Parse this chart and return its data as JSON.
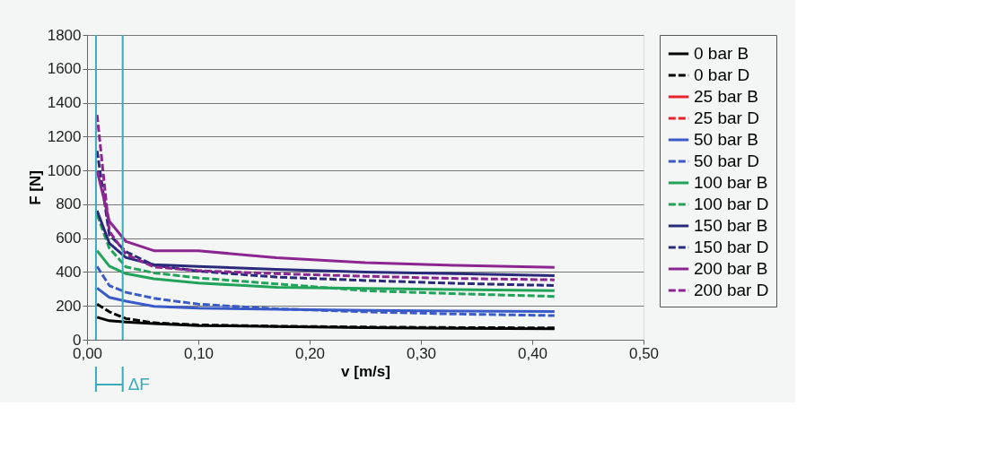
{
  "chart_data": {
    "type": "line",
    "xlabel": "v [m/s]",
    "ylabel": "F [N]",
    "x": [
      0.009,
      0.02,
      0.035,
      0.06,
      0.1,
      0.17,
      0.25,
      0.33,
      0.42
    ],
    "xlim": [
      0,
      0.5
    ],
    "xticks": [
      {
        "value": 0,
        "label": "0,00"
      },
      {
        "value": 0.1,
        "label": "0,10"
      },
      {
        "value": 0.2,
        "label": "0,20"
      },
      {
        "value": 0.3,
        "label": "0,30"
      },
      {
        "value": 0.4,
        "label": "0,40"
      },
      {
        "value": 0.5,
        "label": "0,50"
      }
    ],
    "ylim": [
      0,
      1800
    ],
    "yticks": [
      0,
      200,
      400,
      600,
      800,
      1000,
      1200,
      1400,
      1600,
      1800
    ],
    "grid": "y",
    "legend": "right",
    "marker": "none",
    "series": [
      {
        "name": "0 bar B",
        "color": "#000000",
        "line_style": "solid",
        "values": [
          133,
          112,
          105,
          95,
          84,
          78,
          72,
          68,
          65
        ]
      },
      {
        "name": "0 bar D",
        "color": "#000000",
        "line_style": "dashed",
        "values": [
          211,
          165,
          125,
          100,
          88,
          80,
          75,
          72,
          70
        ]
      },
      {
        "name": "25 bar B",
        "color": "#e8232a",
        "line_style": "solid",
        "values": [
          null,
          null,
          null,
          null,
          null,
          null,
          null,
          null,
          null
        ]
      },
      {
        "name": "25 bar D",
        "color": "#e8232a",
        "line_style": "dashed",
        "values": [
          null,
          null,
          null,
          null,
          null,
          null,
          null,
          null,
          null
        ]
      },
      {
        "name": "50 bar B",
        "color": "#3a5bc7",
        "line_style": "solid",
        "values": [
          305,
          250,
          228,
          197,
          187,
          180,
          173,
          170,
          167
        ]
      },
      {
        "name": "50 bar D",
        "color": "#3a5bc7",
        "line_style": "dashed",
        "values": [
          433,
          320,
          280,
          245,
          210,
          183,
          165,
          152,
          143
        ]
      },
      {
        "name": "100 bar B",
        "color": "#22a35a",
        "line_style": "solid",
        "values": [
          526,
          435,
          390,
          360,
          335,
          310,
          303,
          297,
          290
        ]
      },
      {
        "name": "100 bar D",
        "color": "#22a35a",
        "line_style": "dashed",
        "values": [
          740,
          540,
          430,
          395,
          365,
          330,
          290,
          272,
          256
        ]
      },
      {
        "name": "150 bar B",
        "color": "#2a2a7a",
        "line_style": "solid",
        "values": [
          762,
          570,
          485,
          443,
          433,
          415,
          400,
          390,
          379
        ]
      },
      {
        "name": "150 bar D",
        "color": "#2a2a7a",
        "line_style": "dashed",
        "values": [
          1116,
          620,
          520,
          440,
          405,
          370,
          350,
          333,
          320
        ]
      },
      {
        "name": "200 bar B",
        "color": "#8b2590",
        "line_style": "solid",
        "values": [
          1000,
          700,
          580,
          526,
          525,
          485,
          455,
          440,
          428
        ]
      },
      {
        "name": "200 bar D",
        "color": "#8b2590",
        "line_style": "dashed",
        "values": [
          1328,
          640,
          505,
          430,
          408,
          390,
          375,
          362,
          354
        ]
      }
    ],
    "ref_lines": [
      {
        "axis": "x",
        "value": 0.008,
        "color": "#3aabbb"
      },
      {
        "axis": "x",
        "value": 0.032,
        "color": "#3aabbb"
      }
    ],
    "annotations": [
      "ΔF"
    ]
  }
}
